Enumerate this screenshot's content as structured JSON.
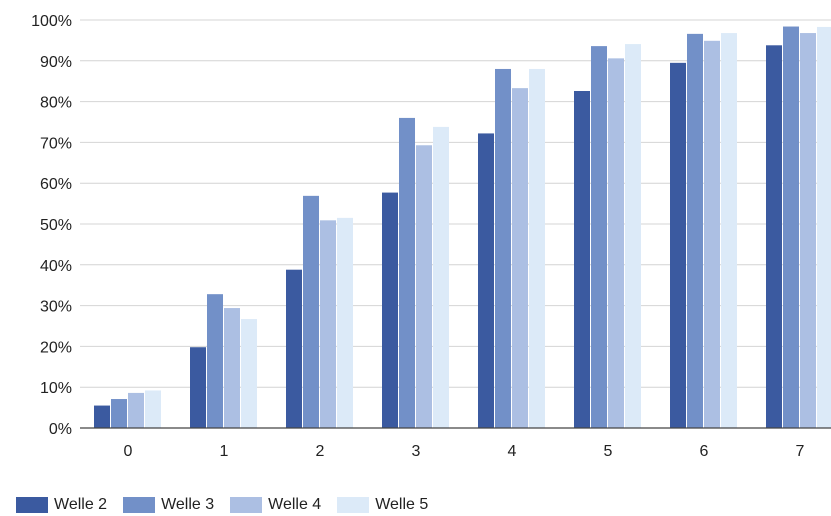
{
  "chart_data": {
    "type": "bar",
    "categories": [
      "0",
      "1",
      "2",
      "3",
      "4",
      "5",
      "6",
      "7"
    ],
    "series": [
      {
        "name": "Welle 2",
        "color": "#3b5aa0",
        "values": [
          5.5,
          19.8,
          38.8,
          57.7,
          72.2,
          82.6,
          89.5,
          93.8
        ]
      },
      {
        "name": "Welle 3",
        "color": "#7290c8",
        "values": [
          7.1,
          32.8,
          56.9,
          76.0,
          88.0,
          93.6,
          96.6,
          98.4
        ]
      },
      {
        "name": "Welle 4",
        "color": "#acbfe3",
        "values": [
          8.6,
          29.4,
          50.9,
          69.3,
          83.3,
          90.6,
          94.9,
          96.8
        ]
      },
      {
        "name": "Welle 5",
        "color": "#dceaf8",
        "values": [
          9.2,
          26.7,
          51.5,
          73.8,
          88.0,
          94.1,
          96.8,
          98.3
        ]
      }
    ],
    "y_ticks": [
      "0%",
      "10%",
      "20%",
      "30%",
      "40%",
      "50%",
      "60%",
      "70%",
      "80%",
      "90%",
      "100%"
    ],
    "ylim": [
      0,
      100
    ],
    "grid": true,
    "legend_position": "bottom-left"
  }
}
